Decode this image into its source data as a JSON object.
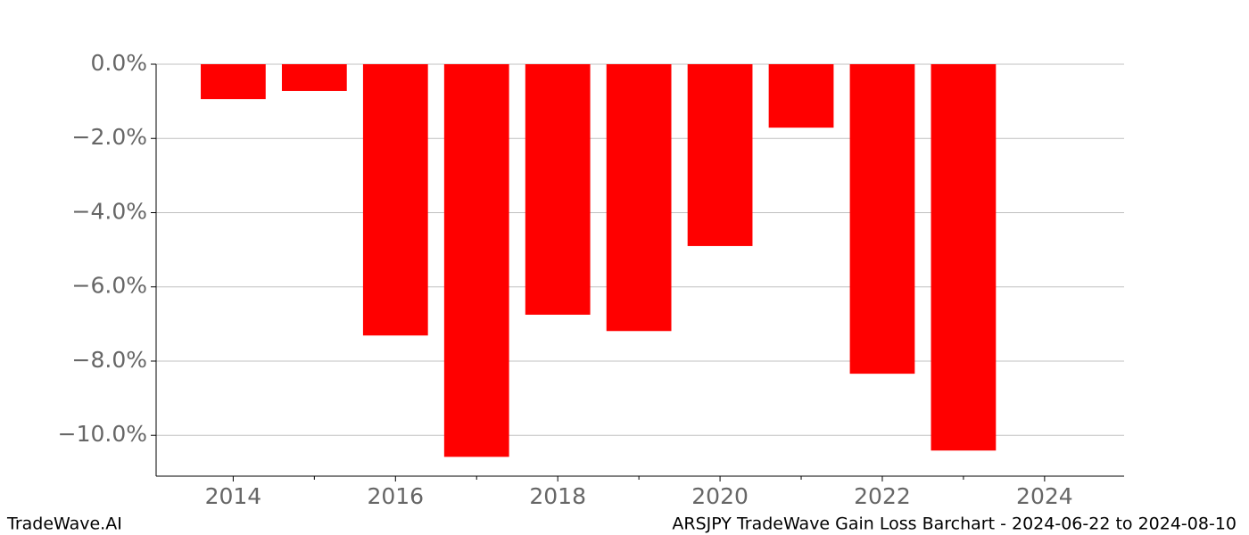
{
  "chart_data": {
    "type": "bar",
    "title": "ARSJPY TradeWave Gain Loss Barchart - 2024-06-22 to 2024-08-10",
    "brand": "TradeWave.AI",
    "x": [
      2014,
      2015,
      2016,
      2017,
      2018,
      2019,
      2020,
      2021,
      2022,
      2023
    ],
    "values": [
      -0.94,
      -0.72,
      -7.31,
      -10.58,
      -6.75,
      -7.19,
      -4.9,
      -1.71,
      -8.34,
      -10.41
    ],
    "color": "#ff0000",
    "xlim": [
      2013.05,
      2024.98
    ],
    "xticks": [
      2014,
      2016,
      2018,
      2020,
      2022,
      2024
    ],
    "xminorticks": [
      2015,
      2017,
      2019,
      2021,
      2023
    ],
    "ylim": [
      -11.1,
      0
    ],
    "yticks": [
      {
        "value": 0,
        "label": "0.0%"
      },
      {
        "value": -2,
        "label": "−2.0%"
      },
      {
        "value": -4,
        "label": "−4.0%"
      },
      {
        "value": -6,
        "label": "−6.0%"
      },
      {
        "value": -8,
        "label": "−8.0%"
      },
      {
        "value": -10,
        "label": "−10.0%"
      }
    ],
    "grid": true
  }
}
